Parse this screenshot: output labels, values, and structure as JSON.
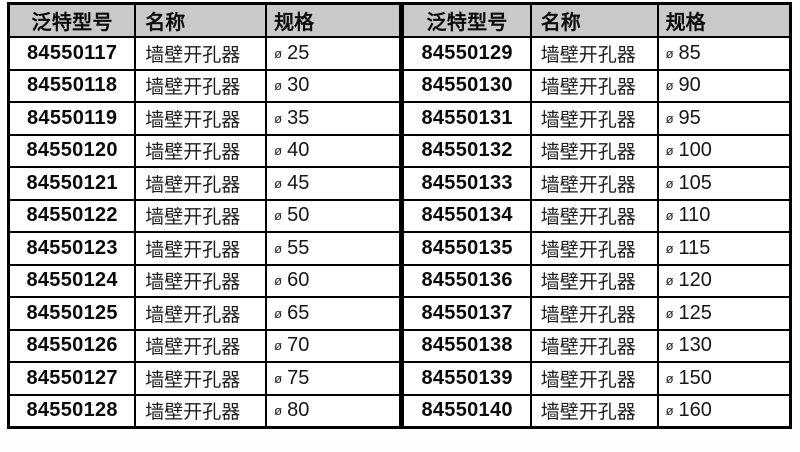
{
  "table": {
    "headers": [
      "泛特型号",
      "名称",
      "规格"
    ],
    "spec_symbol": "ø",
    "rows": [
      {
        "left_model": "84550117",
        "left_name": "墙壁开孔器",
        "left_spec": "25",
        "right_model": "84550129",
        "right_name": "墙壁开孔器",
        "right_spec": "85"
      },
      {
        "left_model": "84550118",
        "left_name": "墙壁开孔器",
        "left_spec": "30",
        "right_model": "84550130",
        "right_name": "墙壁开孔器",
        "right_spec": "90"
      },
      {
        "left_model": "84550119",
        "left_name": "墙壁开孔器",
        "left_spec": "35",
        "right_model": "84550131",
        "right_name": "墙壁开孔器",
        "right_spec": "95"
      },
      {
        "left_model": "84550120",
        "left_name": "墙壁开孔器",
        "left_spec": "40",
        "right_model": "84550132",
        "right_name": "墙壁开孔器",
        "right_spec": "100"
      },
      {
        "left_model": "84550121",
        "left_name": "墙壁开孔器",
        "left_spec": "45",
        "right_model": "84550133",
        "right_name": "墙壁开孔器",
        "right_spec": "105"
      },
      {
        "left_model": "84550122",
        "left_name": "墙壁开孔器",
        "left_spec": "50",
        "right_model": "84550134",
        "right_name": "墙壁开孔器",
        "right_spec": "110"
      },
      {
        "left_model": "84550123",
        "left_name": "墙壁开孔器",
        "left_spec": "55",
        "right_model": "84550135",
        "right_name": "墙壁开孔器",
        "right_spec": "115"
      },
      {
        "left_model": "84550124",
        "left_name": "墙壁开孔器",
        "left_spec": "60",
        "right_model": "84550136",
        "right_name": "墙壁开孔器",
        "right_spec": "120"
      },
      {
        "left_model": "84550125",
        "left_name": "墙壁开孔器",
        "left_spec": "65",
        "right_model": "84550137",
        "right_name": "墙壁开孔器",
        "right_spec": "125"
      },
      {
        "left_model": "84550126",
        "left_name": "墙壁开孔器",
        "left_spec": "70",
        "right_model": "84550138",
        "right_name": "墙壁开孔器",
        "right_spec": "130"
      },
      {
        "left_model": "84550127",
        "left_name": "墙壁开孔器",
        "left_spec": "75",
        "right_model": "84550139",
        "right_name": "墙壁开孔器",
        "right_spec": "150"
      },
      {
        "left_model": "84550128",
        "left_name": "墙壁开孔器",
        "left_spec": "80",
        "right_model": "84550140",
        "right_name": "墙壁开孔器",
        "right_spec": "160"
      }
    ],
    "colors": {
      "header_background": "#c9c9c9",
      "border": "#000000",
      "text": "#111111"
    }
  }
}
